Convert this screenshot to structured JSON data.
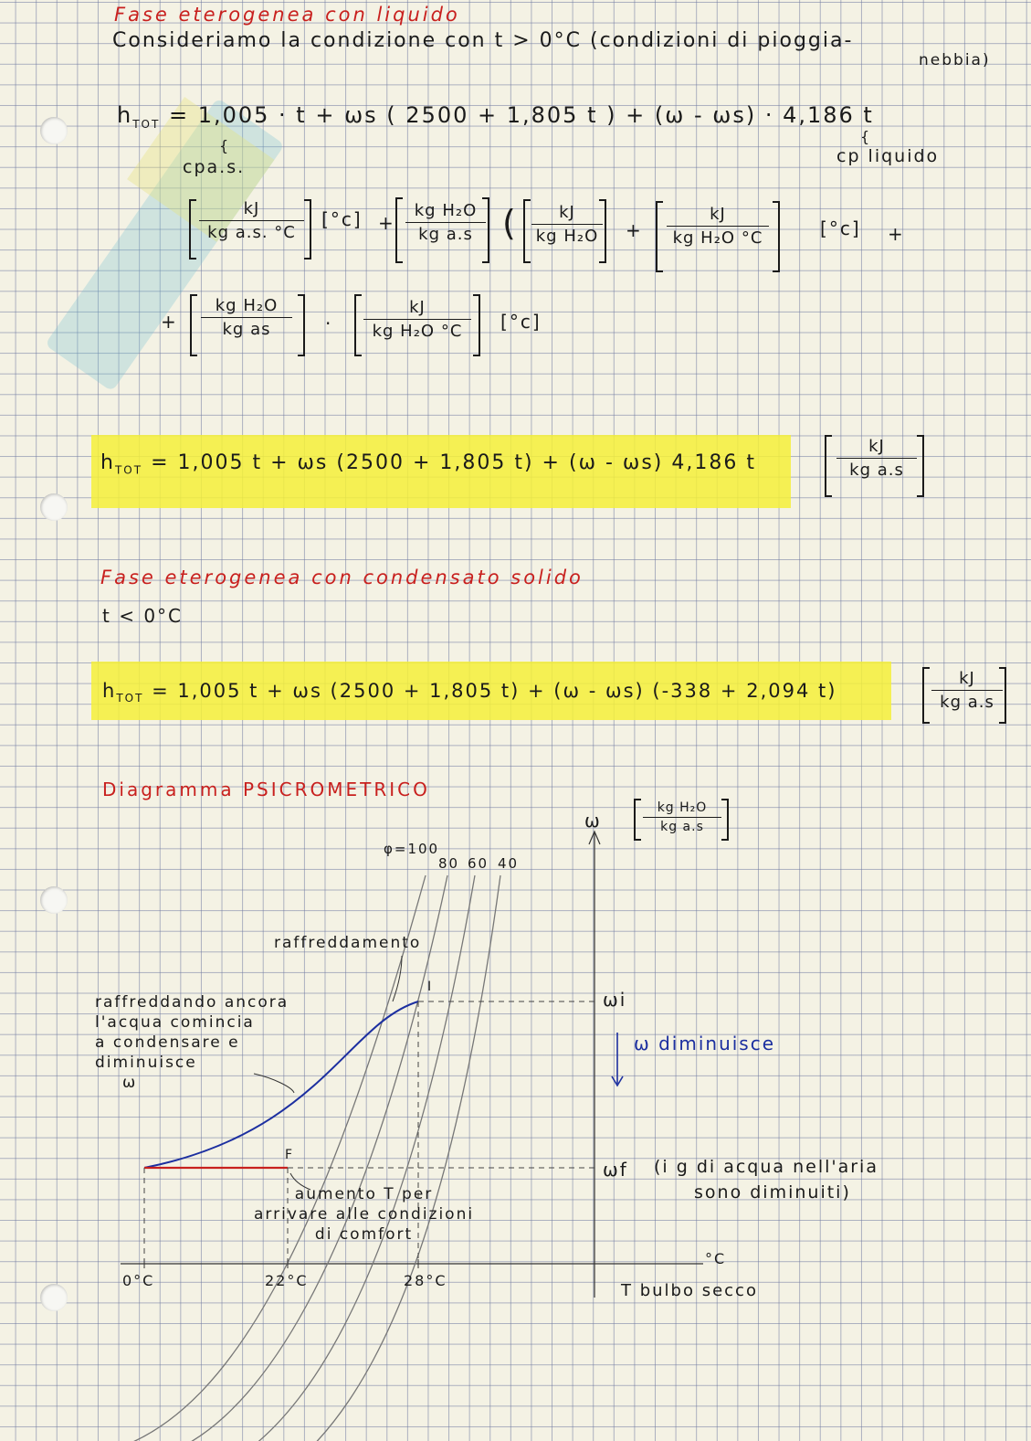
{
  "section1": {
    "title": "Fase eterogenea con liquido",
    "line1": "Consideriamo la condizione con t > 0°C (condizioni di pioggia-",
    "line1b": "nebbia)"
  },
  "eq1": {
    "h": "h",
    "sub": "TOT",
    "body": "= 1,005 · t + ωs ( 2500 + 1,805 t ) + (ω - ωs) · 4,186 t",
    "note_left": "cpa.s.",
    "note_right": "cp liquido"
  },
  "units": {
    "f1_num": "kJ",
    "f1_den": "kg a.s. °C",
    "c1": "°c",
    "f2_num": "kg H₂O",
    "f2_den": "kg a.s",
    "f3_num": "kJ",
    "f3_den": "kg H₂O",
    "f4_num": "kJ",
    "f4_den": "kg H₂O °C",
    "c2": "°c",
    "f5_num": "kg H₂O",
    "f5_den": "kg as",
    "f6_num": "kJ",
    "f6_den": "kg H₂O °C",
    "c3": "°c"
  },
  "eq2": {
    "h": "h",
    "sub": "TOT",
    "body": "= 1,005 t + ωs (2500 + 1,805 t) + (ω - ωs) 4,186 t",
    "unit_num": "kJ",
    "unit_den": "kg a.s"
  },
  "section2": {
    "title": "Fase eterogenea con condensato solido",
    "cond": "t < 0°C"
  },
  "eq3": {
    "h": "h",
    "sub": "TOT",
    "body": "= 1,005 t + ωs (2500 + 1,805 t) + (ω - ωs) (-338 + 2,094 t)",
    "unit_num": "kJ",
    "unit_den": "kg a.s"
  },
  "section3": {
    "title": "Diagramma PSICROMETRICO"
  },
  "diagram": {
    "w_axis": "ω",
    "w_unit_num": "kg H₂O",
    "w_unit_den": "kg a.s",
    "phi": "φ=100",
    "phi80": "80",
    "phi60": "60",
    "phi40": "40",
    "raffreddamento": "raffreddamento",
    "point_i": "I",
    "point_f": "F",
    "note1": [
      "raffreddando ancora",
      "l'acqua comincia",
      "a condensare e",
      "diminuisce",
      "ω"
    ],
    "wi": "ωi",
    "w_dim": "ω diminuisce",
    "wf": "ωf",
    "wf_note1": "(i g di acqua nell'aria",
    "wf_note2": "sono diminuiti)",
    "note2": [
      "aumento T per",
      "arrivare alle condizioni",
      "di comfort"
    ],
    "t0": "0°C",
    "t22": "22°C",
    "t28": "28°C",
    "x_unit": "°C",
    "x_axis": "T bulbo secco"
  },
  "colors": {
    "red_ink": "#c8201e",
    "blue_ink": "#1c2fa0",
    "highlight": "#f4f03a"
  }
}
